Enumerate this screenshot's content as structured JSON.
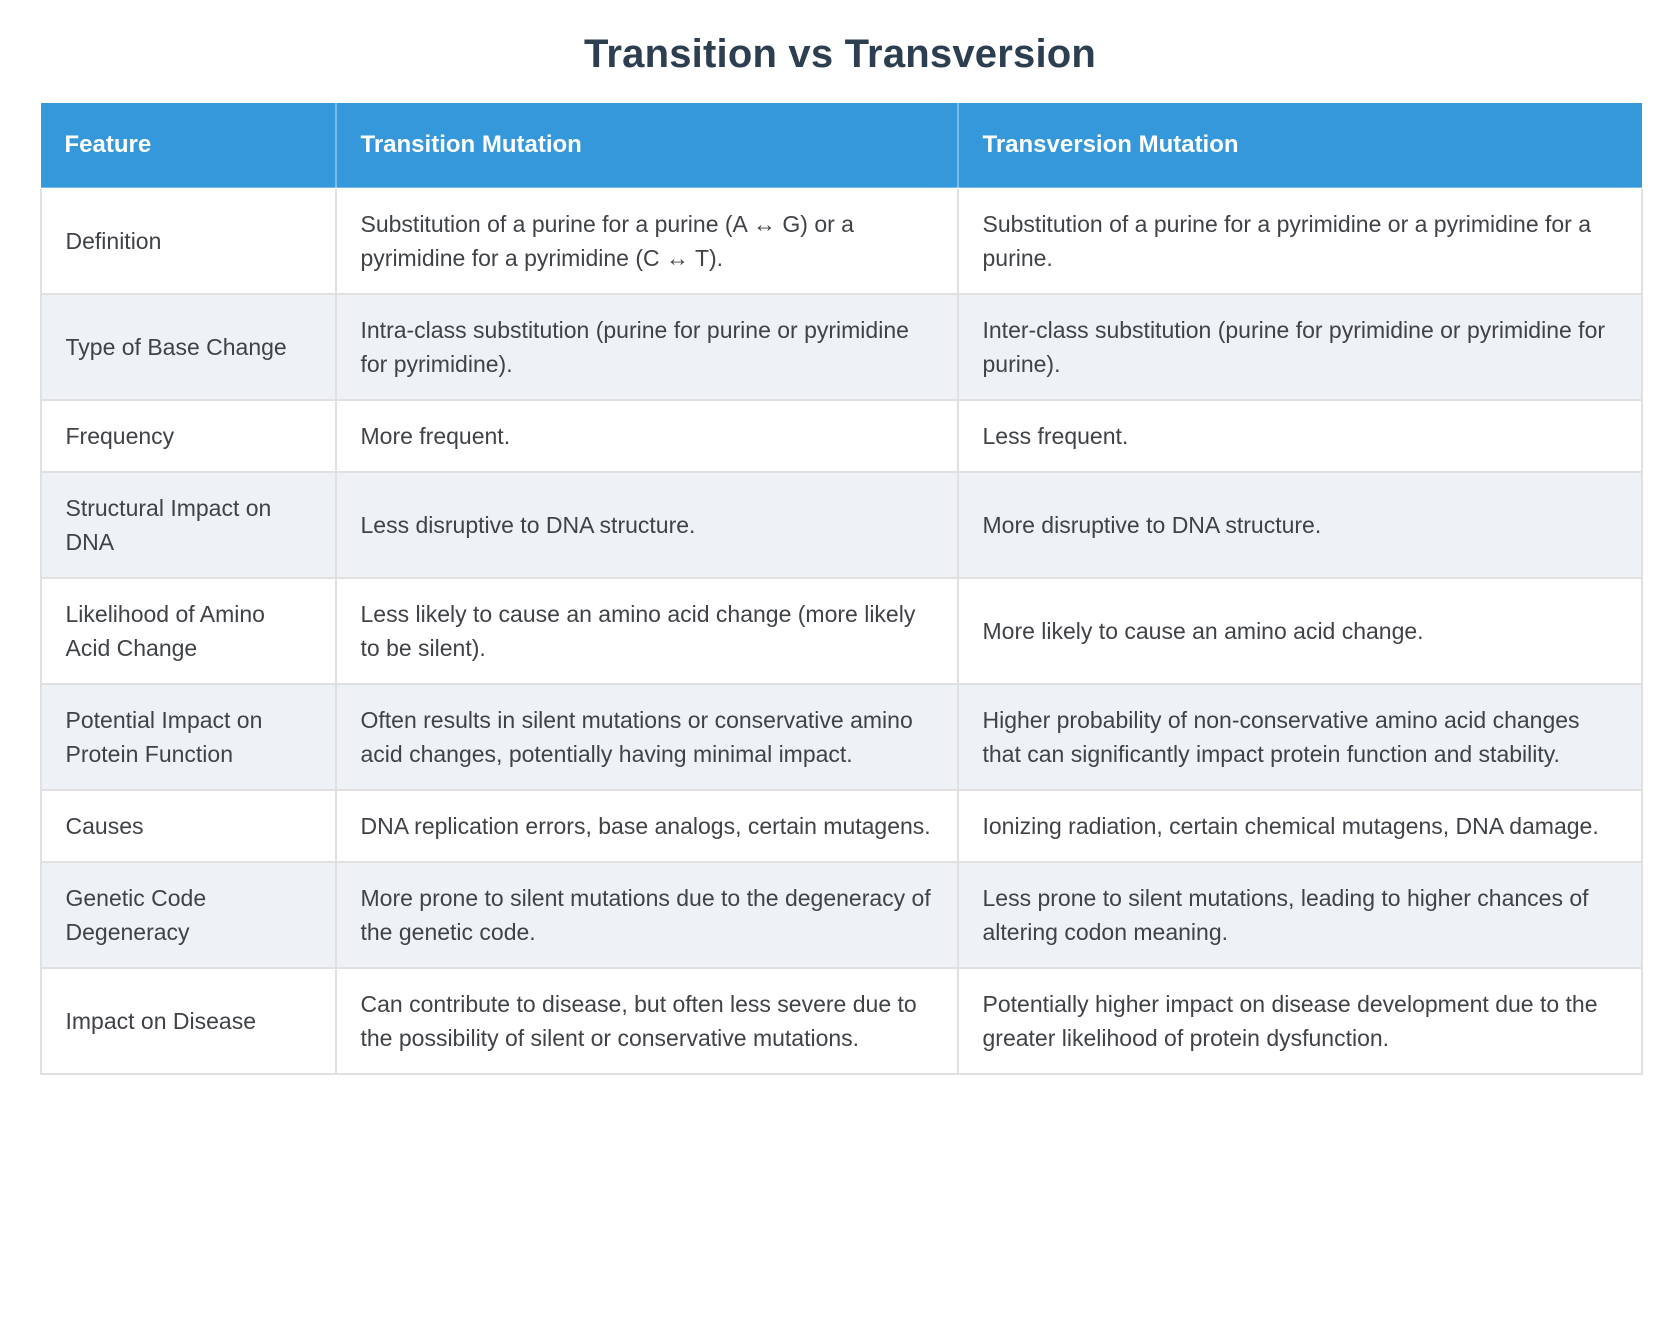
{
  "page": {
    "title": "Transition vs Transversion"
  },
  "colors": {
    "header_bg": "#3498db",
    "header_text": "#ffffff",
    "title_text": "#2c3e50",
    "stripe_bg": "#eef2f7",
    "body_text": "#3f4246",
    "cell_border": "#e0e0e0"
  },
  "chart_data": {
    "type": "table",
    "title": "Transition vs Transversion",
    "columns": [
      "Feature",
      "Transition Mutation",
      "Transversion Mutation"
    ],
    "rows": [
      [
        "Definition",
        "Substitution of a purine for a purine (A ↔ G) or a pyrimidine for a pyrimidine (C ↔ T).",
        "Substitution of a purine for a pyrimidine or a pyrimidine for a purine."
      ],
      [
        "Type of Base Change",
        "Intra-class substitution (purine for purine or pyrimidine for pyrimidine).",
        "Inter-class substitution (purine for pyrimidine or pyrimidine for purine)."
      ],
      [
        "Frequency",
        "More frequent.",
        "Less frequent."
      ],
      [
        "Structural Impact on DNA",
        "Less disruptive to DNA structure.",
        "More disruptive to DNA structure."
      ],
      [
        "Likelihood of Amino Acid Change",
        "Less likely to cause an amino acid change (more likely to be silent).",
        "More likely to cause an amino acid change."
      ],
      [
        "Potential Impact on Protein Function",
        "Often results in silent mutations or conservative amino acid changes, potentially having minimal impact.",
        "Higher probability of non-conservative amino acid changes that can significantly impact protein function and stability."
      ],
      [
        "Causes",
        "DNA replication errors, base analogs, certain mutagens.",
        "Ionizing radiation, certain chemical mutagens, DNA damage."
      ],
      [
        "Genetic Code Degeneracy",
        "More prone to silent mutations due to the degeneracy of the genetic code.",
        "Less prone to silent mutations, leading to higher chances of altering codon meaning."
      ],
      [
        "Impact on Disease",
        "Can contribute to disease, but often less severe due to the possibility of silent or conservative mutations.",
        "Potentially higher impact on disease development due to the greater likelihood of protein dysfunction."
      ]
    ]
  }
}
